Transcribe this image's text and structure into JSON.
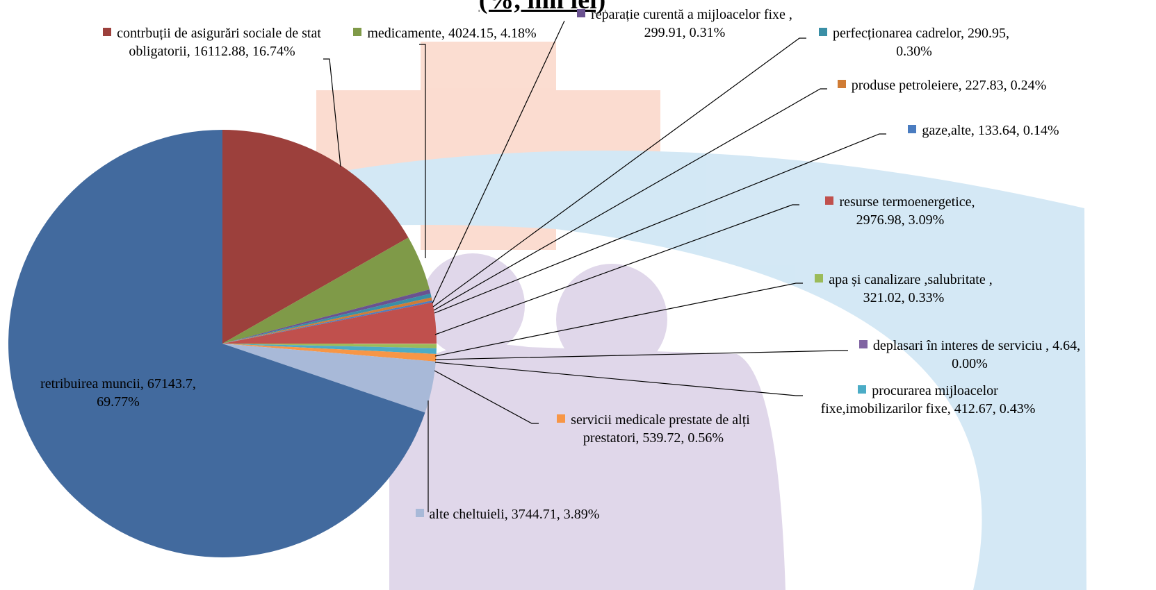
{
  "chart_data": {
    "type": "pie",
    "title": "(%, mil lei)",
    "values": [
      16112.88,
      4024.15,
      299.91,
      290.95,
      227.83,
      133.64,
      2976.98,
      321.02,
      4.64,
      412.67,
      539.72,
      3744.71,
      67143.7
    ],
    "value_labels": [
      "contrbuții de asigurări sociale de stat obligatorii, 16112.88, 16.74%",
      "medicamente, 4024.15, 4.18%",
      "reparație curentă a mijloacelor fixe , 299.91, 0.31%",
      "perfecționarea cadrelor, 290.95, 0.30%",
      "produse petroleiere, 227.83, 0.24%",
      "gaze,alte, 133.64, 0.14%",
      "resurse termoenergetice, 2976.98, 3.09%",
      "apa și canalizare ,salubritate , 321.02, 0.33%",
      "deplasari în interes de serviciu , 4.64, 0.00%",
      "procurarea mijloacelor fixe,imobilizarilor fixe, 412.67, 0.43%",
      "servicii medicale prestate de alți prestatori, 539.72, 0.56%",
      "alte cheltuieli, 3744.71, 3.89%",
      "retribuirea muncii, 67143.7, 69.77%"
    ],
    "colors": [
      "#9c403c",
      "#7f9a48",
      "#6a5290",
      "#3a8fa6",
      "#d07c35",
      "#4a7cc0",
      "#c0504d",
      "#9bbb59",
      "#8064a2",
      "#4bacc6",
      "#f79646",
      "#a8b9d8",
      "#426a9e"
    ]
  }
}
